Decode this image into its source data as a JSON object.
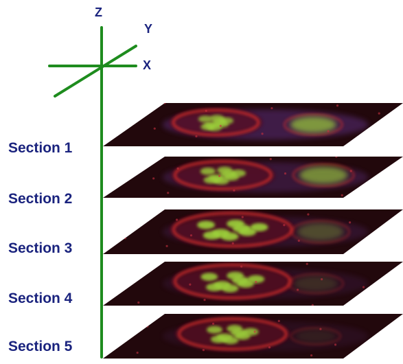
{
  "axes": {
    "z_label": "Z",
    "y_label": "Y",
    "x_label": "X"
  },
  "sections": [
    {
      "label": "Section 1"
    },
    {
      "label": "Section 2"
    },
    {
      "label": "Section 3"
    },
    {
      "label": "Section 4"
    },
    {
      "label": "Section 5"
    }
  ],
  "colors": {
    "axis": "#1e8c1e",
    "label": "#1a237e",
    "slice_bg": "#22080c",
    "membrane": "#e0302a",
    "nucleus": "#9cd23a",
    "stain": "#6a3a9c"
  }
}
